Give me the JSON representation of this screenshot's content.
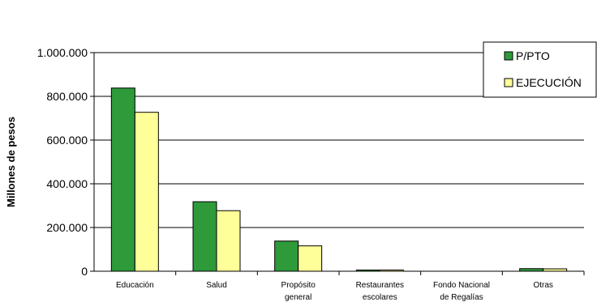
{
  "chart_data": {
    "type": "bar",
    "ylabel": "Millones de pesos",
    "ylim": [
      0,
      1000000
    ],
    "yticks": [
      0,
      200000,
      400000,
      600000,
      800000,
      1000000
    ],
    "ytick_labels": [
      "0",
      "200.000",
      "400.000",
      "600.000",
      "800.000",
      "1.000.000"
    ],
    "categories": [
      [
        "Educación"
      ],
      [
        "Salud"
      ],
      [
        "Propósito",
        "general"
      ],
      [
        "Restaurantes",
        "escolares"
      ],
      [
        "Fondo Nacional",
        "de Regalías"
      ],
      [
        "Otras"
      ]
    ],
    "series": [
      {
        "name": "P/PTO",
        "color": "#2e9a3a",
        "values": [
          838000,
          318000,
          138000,
          5000,
          0,
          12000
        ]
      },
      {
        "name": "EJECUCIÓN",
        "color": "#ffff99",
        "values": [
          727000,
          277000,
          116000,
          4000,
          0,
          11000
        ]
      }
    ],
    "grid": true,
    "legend_position": "top-right"
  }
}
